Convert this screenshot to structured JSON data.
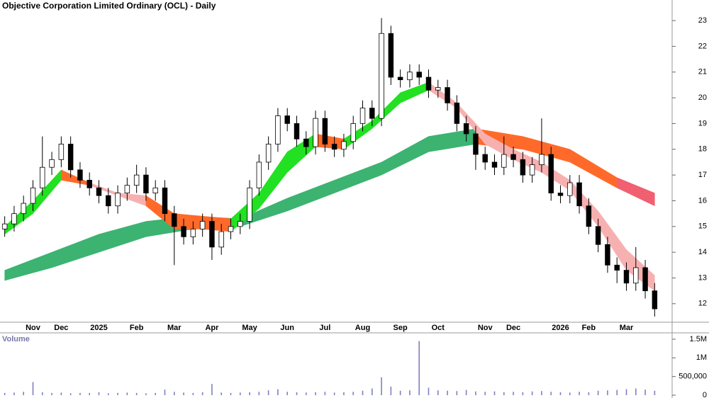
{
  "chart_data": [
    {
      "type": "candlestick",
      "title": "Objective Corporation Limited Ordinary (OCL) - Daily",
      "categories": [
        null,
        null,
        null,
        "Nov",
        null,
        null,
        "Dec",
        null,
        null,
        null,
        "2025",
        null,
        null,
        null,
        "Feb",
        null,
        null,
        null,
        "Mar",
        null,
        null,
        null,
        "Apr",
        null,
        null,
        null,
        "May",
        null,
        null,
        null,
        "Jun",
        null,
        null,
        null,
        "Jul",
        null,
        null,
        null,
        "Aug",
        null,
        null,
        null,
        "Sep",
        null,
        null,
        null,
        "Oct",
        null,
        null,
        null,
        null,
        "Nov",
        null,
        null,
        "Dec",
        null,
        null,
        null,
        null,
        "2026",
        null,
        null,
        "Feb",
        null,
        null,
        null,
        "Mar",
        null,
        null,
        null
      ],
      "open": [
        14.9,
        15.1,
        15.5,
        15.9,
        16.5,
        17.3,
        17.6,
        18.2,
        17.2,
        16.8,
        16.5,
        16.2,
        15.8,
        16.3,
        16.6,
        17.0,
        16.3,
        16.5,
        15.5,
        15.0,
        14.6,
        14.9,
        15.2,
        14.2,
        14.8,
        15.0,
        15.2,
        16.5,
        17.5,
        18.2,
        19.3,
        19.0,
        18.4,
        18.1,
        19.2,
        18.2,
        18.0,
        18.3,
        19.0,
        19.6,
        19.2,
        22.5,
        20.8,
        20.7,
        21.0,
        20.8,
        20.3,
        20.4,
        19.8,
        19.0,
        18.6,
        17.8,
        17.5,
        17.3,
        17.8,
        17.6,
        17.0,
        17.4,
        17.8,
        16.3,
        16.2,
        16.7,
        15.8,
        15.0,
        14.3,
        13.5,
        13.3,
        12.8,
        13.4,
        12.5
      ],
      "high": [
        15.4,
        15.8,
        16.2,
        16.8,
        18.5,
        17.9,
        18.5,
        18.5,
        17.5,
        17.1,
        16.8,
        16.5,
        16.6,
        16.9,
        17.4,
        17.3,
        16.8,
        16.8,
        15.8,
        15.3,
        15.2,
        15.5,
        15.5,
        15.1,
        15.3,
        15.5,
        16.8,
        17.8,
        18.5,
        19.6,
        19.6,
        19.3,
        18.7,
        19.5,
        19.5,
        18.5,
        18.6,
        19.3,
        19.9,
        19.9,
        23.1,
        22.8,
        21.1,
        21.3,
        21.3,
        21.1,
        20.7,
        20.7,
        20.1,
        19.3,
        18.9,
        18.1,
        17.8,
        18.5,
        18.1,
        17.9,
        17.7,
        19.2,
        18.1,
        16.6,
        17.0,
        17.0,
        16.1,
        15.3,
        14.6,
        13.8,
        13.6,
        14.2,
        13.7,
        12.8
      ],
      "low": [
        14.6,
        14.8,
        15.2,
        15.6,
        16.2,
        17.0,
        17.3,
        16.9,
        16.5,
        16.2,
        15.9,
        15.5,
        15.5,
        16.0,
        16.3,
        16.0,
        16.0,
        15.2,
        13.5,
        14.3,
        14.3,
        14.6,
        13.7,
        13.9,
        14.5,
        14.7,
        14.9,
        16.2,
        17.2,
        17.9,
        18.7,
        18.1,
        17.8,
        17.8,
        17.9,
        17.7,
        17.7,
        18.0,
        18.7,
        18.9,
        18.9,
        20.5,
        20.4,
        20.4,
        20.5,
        20.0,
        20.0,
        19.5,
        18.7,
        18.3,
        17.2,
        17.2,
        17.0,
        17.0,
        17.3,
        16.7,
        16.7,
        17.1,
        16.0,
        15.9,
        15.9,
        15.5,
        14.7,
        14.0,
        13.2,
        12.8,
        12.5,
        12.5,
        12.2,
        11.5
      ],
      "close": [
        15.1,
        15.5,
        15.9,
        16.5,
        17.3,
        17.6,
        18.2,
        17.2,
        16.8,
        16.5,
        16.2,
        15.8,
        16.3,
        16.6,
        17.0,
        16.3,
        16.5,
        15.5,
        15.0,
        14.6,
        14.9,
        15.2,
        14.2,
        14.8,
        15.0,
        15.2,
        16.5,
        17.5,
        18.2,
        19.3,
        19.0,
        18.4,
        18.1,
        19.2,
        18.2,
        18.0,
        18.3,
        19.0,
        19.6,
        19.2,
        22.5,
        20.8,
        20.7,
        21.0,
        20.8,
        20.3,
        20.4,
        19.8,
        19.0,
        18.6,
        17.8,
        17.5,
        17.3,
        17.8,
        17.6,
        17.0,
        17.4,
        17.8,
        16.3,
        16.2,
        16.7,
        15.8,
        15.0,
        14.3,
        13.5,
        13.3,
        12.8,
        13.4,
        12.5,
        11.8
      ],
      "up_color": "#ffffff",
      "down_color": "#000000",
      "ylim": [
        11.28,
        23.8
      ],
      "yticks": [
        12,
        13,
        14,
        15,
        16,
        17,
        18,
        19,
        20,
        21,
        22,
        23
      ],
      "ribbons": [
        {
          "x": [
            0,
            5,
            10,
            15,
            20,
            25,
            30,
            35,
            40,
            45,
            50,
            55,
            60,
            65,
            69
          ],
          "upper": [
            13.3,
            14.0,
            14.7,
            15.2,
            15.4,
            15.3,
            16.1,
            16.8,
            17.5,
            18.5,
            18.8,
            18.5,
            18.0,
            16.9,
            16.3
          ],
          "lower": [
            12.9,
            13.4,
            14.0,
            14.6,
            14.9,
            15.0,
            15.6,
            16.3,
            17.0,
            17.9,
            18.2,
            18.0,
            17.5,
            16.5,
            15.8
          ],
          "colors": [
            "#3cb371",
            "#3cb371",
            "#3cb371",
            "#3cb371",
            "#3cb371",
            "#3cb371",
            "#3cb371",
            "#3cb371",
            "#3cb371",
            "#3cb371",
            "#ff6a2a",
            "#ff6a2a",
            "#ff6a2a",
            "#f06070"
          ]
        },
        {
          "x": [
            0,
            3,
            6,
            9,
            12,
            15,
            18,
            21,
            24,
            27,
            30,
            33,
            36,
            39,
            42,
            45,
            48,
            51,
            54,
            57,
            60,
            63,
            66,
            69
          ],
          "upper": [
            15.0,
            16.0,
            17.2,
            16.7,
            16.3,
            16.2,
            15.5,
            15.4,
            15.3,
            16.3,
            17.9,
            18.6,
            18.4,
            19.1,
            20.2,
            20.6,
            19.8,
            18.6,
            18.0,
            17.5,
            16.8,
            15.6,
            14.1,
            13.1
          ],
          "lower": [
            14.7,
            15.5,
            16.8,
            16.6,
            16.2,
            15.8,
            14.9,
            14.9,
            14.8,
            15.7,
            17.1,
            18.1,
            18.0,
            18.8,
            19.8,
            20.3,
            19.6,
            18.2,
            17.6,
            17.1,
            16.4,
            15.0,
            13.3,
            12.5
          ],
          "colors": [
            "#22e022",
            "#22e022",
            "#ff6a2a",
            "#f7b0b0",
            "#f7b0b0",
            "#ff6a2a",
            "#ff6a2a",
            "#ff6a2a",
            "#22e022",
            "#22e022",
            "#22e022",
            "#ff6a2a",
            "#22e022",
            "#22e022",
            "#22e022",
            "#f7b0b0",
            "#f7b0b0",
            "#f7b0b0",
            "#f7b0b0",
            "#f7b0b0",
            "#f7b0b0",
            "#f7b0b0",
            "#f7b0b0"
          ]
        }
      ]
    },
    {
      "type": "bar",
      "title": "Volume",
      "color": "#8080c0",
      "values": [
        60000,
        70000,
        90000,
        350000,
        80000,
        60000,
        70000,
        50000,
        60000,
        60000,
        80000,
        50000,
        60000,
        70000,
        60000,
        50000,
        60000,
        150000,
        90000,
        70000,
        60000,
        80000,
        300000,
        70000,
        60000,
        70000,
        80000,
        90000,
        130000,
        160000,
        90000,
        80000,
        70000,
        80000,
        90000,
        70000,
        80000,
        90000,
        120000,
        180000,
        480000,
        230000,
        120000,
        130000,
        1450000,
        200000,
        130000,
        120000,
        110000,
        140000,
        100000,
        90000,
        100000,
        80000,
        90000,
        80000,
        100000,
        110000,
        90000,
        80000,
        70000,
        90000,
        80000,
        120000,
        130000,
        140000,
        160000,
        180000,
        150000,
        120000
      ],
      "ylim": [
        0,
        1670000
      ],
      "yticks": [
        0,
        {
          "value": 500000,
          "label": "500,000"
        },
        {
          "value": 1000000,
          "label": "1M"
        },
        {
          "value": 1500000,
          "label": "1.5M"
        }
      ]
    }
  ]
}
